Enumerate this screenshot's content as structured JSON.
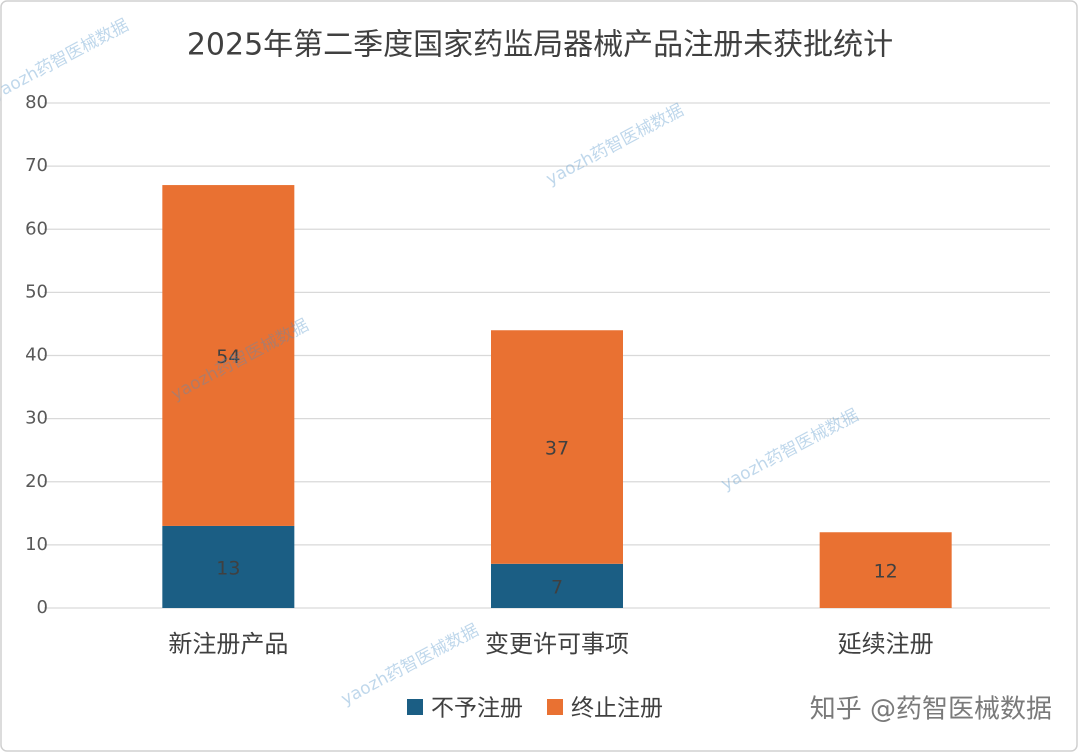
{
  "chart_data": {
    "type": "stacked_bar",
    "title": "2025年第二季度国家药监局器械产品注册未获批统计",
    "categories": [
      "新注册产品",
      "变更许可事项",
      "延续注册"
    ],
    "series": [
      {
        "name": "不予注册",
        "color": "#1b5e84",
        "values": [
          13,
          7,
          null
        ]
      },
      {
        "name": "终止注册",
        "color": "#e97132",
        "values": [
          54,
          37,
          12
        ]
      }
    ],
    "ylim": [
      0,
      80
    ],
    "yticks": [
      0,
      10,
      20,
      30,
      40,
      50,
      60,
      70,
      80
    ],
    "grid": true,
    "legend": "bottom",
    "watermark": "yaozh药智医械数据",
    "attribution": "知乎 @药智医械数据"
  }
}
